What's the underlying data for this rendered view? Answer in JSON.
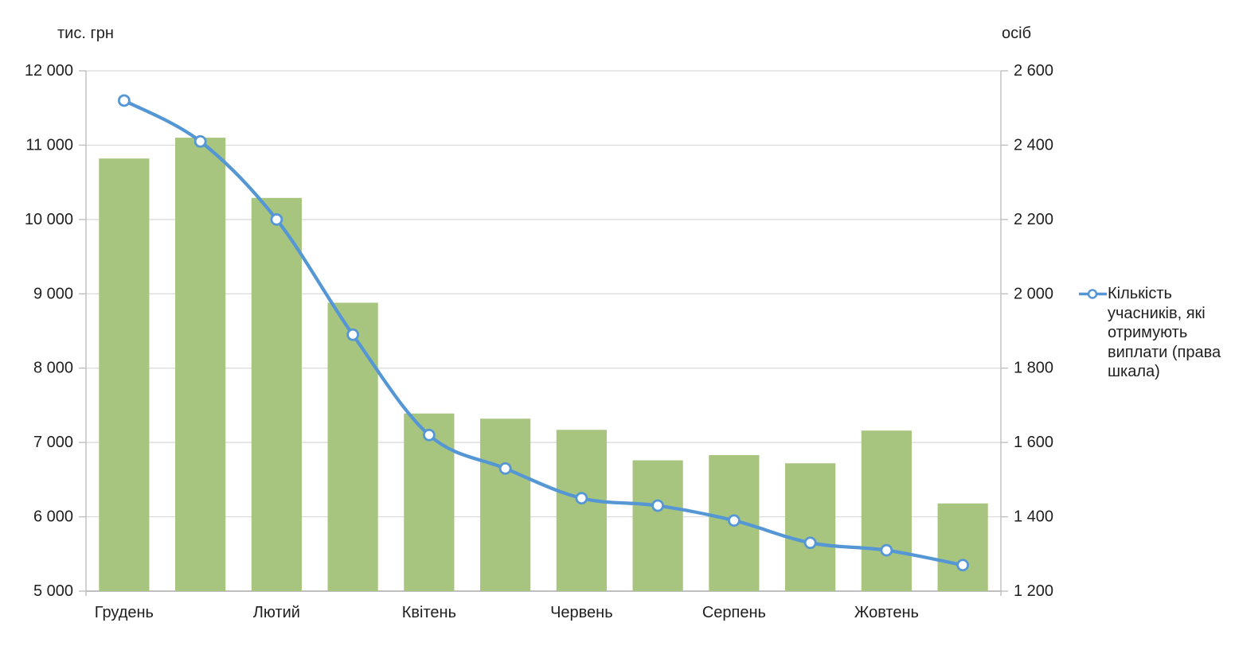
{
  "colors": {
    "bar": "#a7c57e",
    "line": "#5596d4",
    "marker_fill": "#ffffff",
    "gridline": "#d9d9d9",
    "axis": "#bfbfbf",
    "text": "#1f1f1f"
  },
  "axes": {
    "left_title": "тис. грн",
    "right_title": "осіб",
    "left_ticks": [
      "12 000",
      "11 000",
      "10 000",
      "9 000",
      "8 000",
      "7 000",
      "6 000",
      "5 000"
    ],
    "right_ticks": [
      "2 600",
      "2 400",
      "2 200",
      "2 000",
      "1 800",
      "1 600",
      "1 400",
      "1 200"
    ],
    "left_min": 5000,
    "left_max": 12000,
    "right_min": 1200,
    "right_max": 2600
  },
  "chart_data": {
    "type": "combo-bar-line",
    "title": "",
    "left_axis_label": "тис. грн",
    "right_axis_label": "осіб",
    "left_range": [
      5000,
      12000
    ],
    "right_range": [
      1200,
      2600
    ],
    "grid": true,
    "legend_position": "right",
    "categories": [
      "Грудень",
      "",
      "Лютий",
      "",
      "Квітень",
      "",
      "Червень",
      "",
      "Серпень",
      "",
      "Жовтень",
      ""
    ],
    "series": [
      {
        "name": "",
        "type": "bar",
        "axis": "left",
        "values": [
          10820,
          11100,
          10290,
          8880,
          7390,
          7320,
          7170,
          6760,
          6830,
          6720,
          7160,
          6180
        ]
      },
      {
        "name": "Кількість учасників, які отримують виплати (права шкала)",
        "type": "line",
        "axis": "right",
        "values": [
          2520,
          2410,
          2200,
          1890,
          1620,
          1530,
          1450,
          1430,
          1390,
          1330,
          1310,
          1270
        ]
      }
    ]
  }
}
